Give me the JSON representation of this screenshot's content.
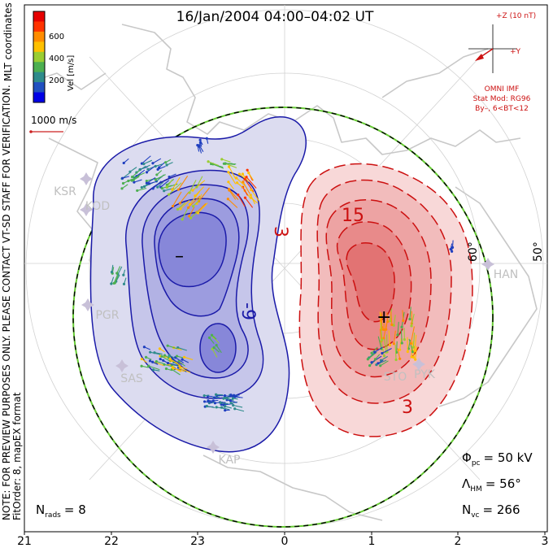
{
  "title": "16/Jan/2004 04:00–04:02 UT",
  "colorbar": {
    "label": "Vel [m/s]",
    "ticks": [
      "600",
      "400",
      "200"
    ],
    "colors": [
      "#e60000",
      "#ff3300",
      "#ff8c00",
      "#ffc000",
      "#9acd32",
      "#4caf50",
      "#2e8b8b",
      "#2050c0",
      "#0000e6"
    ]
  },
  "coord_label": "MLT coordinates",
  "scale_vector": {
    "label": "1000 m/s",
    "color": "#cc2222"
  },
  "imf": {
    "plus_z": "+Z (10 nT)",
    "plus_y": "+Y",
    "source": "OMNI IMF",
    "model_line1": "Stat Mod: RG96",
    "model_line2": "By–, 6<BT<12",
    "color": "#cc1111"
  },
  "side_note_line1": "NOTE: FOR PREVIEW PURPOSES ONLY. PLEASE CONTACT VT-SD STAFF FOR VERIFICATION.",
  "side_note_line2": "FitOrder: 8, mapEX format",
  "latitude_labels": [
    "60°",
    "50°"
  ],
  "contour_labels": {
    "negative": "-9",
    "positive_inner": "15",
    "positive_outer": "3",
    "positive_left": "3"
  },
  "extrema": {
    "min": "–",
    "max": "+"
  },
  "radars": [
    "KSR",
    "KOD",
    "PGR",
    "SAS",
    "KAP",
    "STO",
    "PYK",
    "HAN"
  ],
  "stats": {
    "phi_pc": {
      "symbol": "Φ",
      "sub": "pc",
      "value": "= 50 kV"
    },
    "lambda_hm": {
      "symbol": "Λ",
      "sub": "HM",
      "value": "= 56°"
    },
    "n_vc": {
      "symbol": "N",
      "sub": "vc",
      "value": "= 266"
    },
    "n_rads": {
      "symbol": "N",
      "sub": "rads",
      "value": "= 8"
    }
  },
  "mlt_axis": [
    "21",
    "22",
    "23",
    "0",
    "1",
    "2",
    "3"
  ],
  "colors": {
    "negative_line": "#1a1aa8",
    "negative_fill": "#5b5bd6",
    "positive_line": "#cc1010",
    "positive_fill": "#e85a5a",
    "coast": "#c8c8c8",
    "grid": "#d0d0d0",
    "boundary_green": "#66cc33"
  }
}
